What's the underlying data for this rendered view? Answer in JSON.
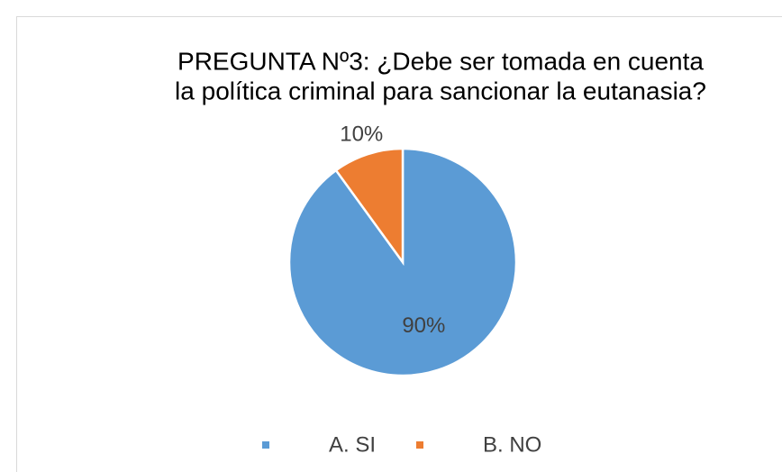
{
  "chart_data": {
    "type": "pie",
    "title": [
      "PREGUNTA Nº3: ¿Debe ser tomada en cuenta",
      "la política criminal para sancionar la eutanasia?"
    ],
    "categories": [
      "A. SI",
      "B. NO"
    ],
    "values": [
      90,
      10
    ],
    "value_labels": [
      "90%",
      "10%"
    ],
    "colors": [
      "#5b9bd5",
      "#ed7d31"
    ],
    "legend": "bottom"
  }
}
